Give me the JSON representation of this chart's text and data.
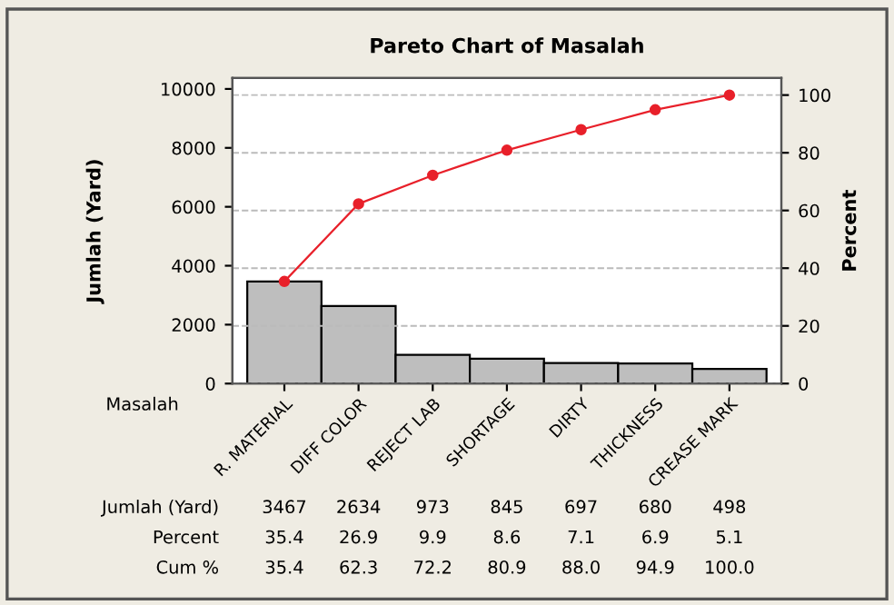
{
  "chart_data": {
    "type": "bar",
    "title": "Pareto Chart of Masalah",
    "xlabel": "Masalah",
    "ylabel": "Jumlah (Yard)",
    "y2label": "Percent",
    "categories": [
      "R. MATERIAL",
      "DIFF COLOR",
      "REJECT LAB",
      "SHORTAGE",
      "DIRTY",
      "THICKNESS",
      "CREASE MARK"
    ],
    "series": [
      {
        "color": "#bebebe",
        "values": [
          3467,
          2634,
          973,
          845,
          697,
          680,
          498
        ],
        "value_labels": [
          "3467",
          "2634",
          "973",
          "845",
          "697",
          "680",
          "498"
        ]
      },
      {
        "type": "line",
        "axis": "y2",
        "color": "#e8202a",
        "marker": "circle",
        "values": [
          35.4,
          62.3,
          72.2,
          80.9,
          88.0,
          94.9,
          100.0
        ]
      }
    ],
    "annotations": [
      "Jumlah (Yard)",
      "Percent",
      "Cum %",
      "35.4",
      "26.9",
      "9.9",
      "8.6",
      "7.1",
      "6.9",
      "5.1",
      "35.4",
      "62.3",
      "72.2",
      "80.9",
      "88.0",
      "94.9",
      "100.0"
    ],
    "ylim": [
      0,
      10370
    ],
    "yticks": [
      0,
      2000,
      4000,
      6000,
      8000,
      10000
    ],
    "y2lim": [
      0,
      105.9
    ],
    "y2ticks": [
      0,
      20,
      40,
      60,
      80,
      100
    ],
    "grid": "y2",
    "legend": false
  }
}
